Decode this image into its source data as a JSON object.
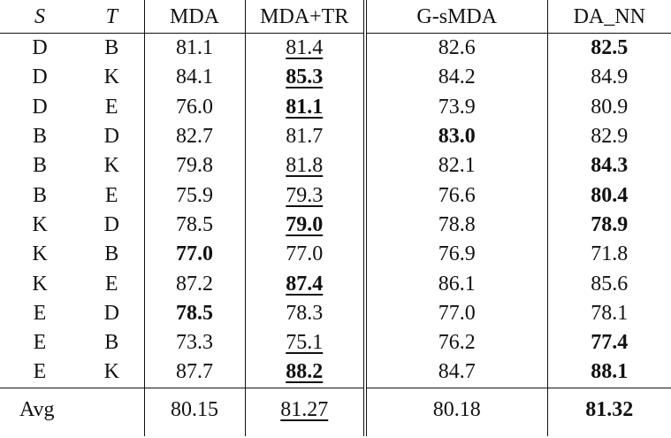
{
  "headers": {
    "s": "S",
    "t": "T",
    "mda": "MDA",
    "mda_tr": "MDA+TR",
    "gsmda": "G-sMDA",
    "da_nn": "DA_NN"
  },
  "rows": [
    {
      "s": "D",
      "t": "B",
      "mda": {
        "v": "81.1"
      },
      "mda_tr": {
        "v": "81.4",
        "u": true
      },
      "gsmda": {
        "v": "82.6"
      },
      "da_nn": {
        "v": "82.5",
        "b": true
      }
    },
    {
      "s": "D",
      "t": "K",
      "mda": {
        "v": "84.1"
      },
      "mda_tr": {
        "v": "85.3",
        "b": true,
        "u": true
      },
      "gsmda": {
        "v": "84.2"
      },
      "da_nn": {
        "v": "84.9"
      }
    },
    {
      "s": "D",
      "t": "E",
      "mda": {
        "v": "76.0"
      },
      "mda_tr": {
        "v": "81.1",
        "b": true,
        "u": true
      },
      "gsmda": {
        "v": "73.9"
      },
      "da_nn": {
        "v": "80.9"
      }
    },
    {
      "s": "B",
      "t": "D",
      "mda": {
        "v": "82.7"
      },
      "mda_tr": {
        "v": "81.7"
      },
      "gsmda": {
        "v": "83.0",
        "b": true
      },
      "da_nn": {
        "v": "82.9"
      }
    },
    {
      "s": "B",
      "t": "K",
      "mda": {
        "v": "79.8"
      },
      "mda_tr": {
        "v": "81.8",
        "u": true
      },
      "gsmda": {
        "v": "82.1"
      },
      "da_nn": {
        "v": "84.3",
        "b": true
      }
    },
    {
      "s": "B",
      "t": "E",
      "mda": {
        "v": "75.9"
      },
      "mda_tr": {
        "v": "79.3",
        "u": true
      },
      "gsmda": {
        "v": "76.6"
      },
      "da_nn": {
        "v": "80.4",
        "b": true
      }
    },
    {
      "s": "K",
      "t": "D",
      "mda": {
        "v": "78.5"
      },
      "mda_tr": {
        "v": "79.0",
        "b": true,
        "u": true
      },
      "gsmda": {
        "v": "78.8"
      },
      "da_nn": {
        "v": "78.9",
        "b": true
      }
    },
    {
      "s": "K",
      "t": "B",
      "mda": {
        "v": "77.0",
        "b": true
      },
      "mda_tr": {
        "v": "77.0"
      },
      "gsmda": {
        "v": "76.9"
      },
      "da_nn": {
        "v": "71.8"
      }
    },
    {
      "s": "K",
      "t": "E",
      "mda": {
        "v": "87.2"
      },
      "mda_tr": {
        "v": "87.4",
        "b": true,
        "u": true
      },
      "gsmda": {
        "v": "86.1"
      },
      "da_nn": {
        "v": "85.6"
      }
    },
    {
      "s": "E",
      "t": "D",
      "mda": {
        "v": "78.5",
        "b": true
      },
      "mda_tr": {
        "v": "78.3"
      },
      "gsmda": {
        "v": "77.0"
      },
      "da_nn": {
        "v": "78.1"
      }
    },
    {
      "s": "E",
      "t": "B",
      "mda": {
        "v": "73.3"
      },
      "mda_tr": {
        "v": "75.1",
        "u": true
      },
      "gsmda": {
        "v": "76.2"
      },
      "da_nn": {
        "v": "77.4",
        "b": true
      }
    },
    {
      "s": "E",
      "t": "K",
      "mda": {
        "v": "87.7"
      },
      "mda_tr": {
        "v": "88.2",
        "b": true,
        "u": true
      },
      "gsmda": {
        "v": "84.7"
      },
      "da_nn": {
        "v": "88.1",
        "b": true
      }
    }
  ],
  "avg": {
    "label": "Avg",
    "mda": {
      "v": "80.15"
    },
    "mda_tr": {
      "v": "81.27",
      "u": true
    },
    "gsmda": {
      "v": "80.18"
    },
    "da_nn": {
      "v": "81.32",
      "b": true
    }
  }
}
